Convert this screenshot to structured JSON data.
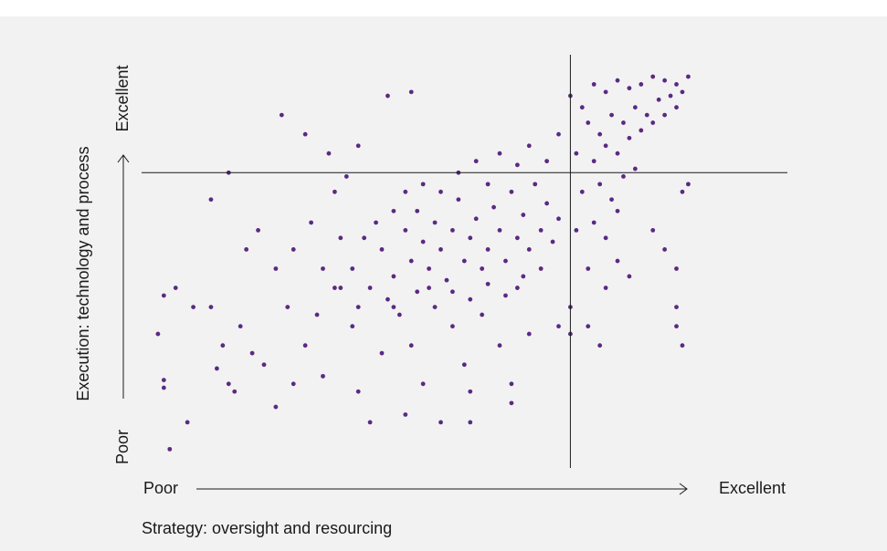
{
  "chart_data": {
    "type": "scatter",
    "xlabel": "Strategy: oversight and resourcing",
    "ylabel": "Execution: technology and process",
    "x_low": "Poor",
    "x_high": "Excellent",
    "y_low": "Poor",
    "y_high": "Excellent",
    "color": "#5a2a82",
    "xlim": [
      0,
      100
    ],
    "ylim": [
      0,
      100
    ],
    "xref": 72,
    "yref": 75,
    "x": [
      4,
      7,
      3,
      2,
      3,
      3,
      5,
      8,
      11,
      11,
      15,
      12,
      13,
      14,
      16,
      18,
      20,
      22,
      25,
      24,
      27,
      29,
      30,
      32,
      14,
      17,
      19,
      22,
      25,
      28,
      30,
      32,
      33,
      35,
      36,
      38,
      40,
      42,
      44,
      45,
      47,
      48,
      50,
      52,
      54,
      55,
      57,
      60,
      62,
      63,
      65,
      67,
      70,
      36,
      41,
      45,
      23,
      27,
      31,
      34,
      40,
      42,
      44,
      45,
      46,
      47,
      48,
      49,
      50,
      51,
      52,
      53,
      54,
      55,
      56,
      57,
      58,
      59,
      60,
      61,
      62,
      63,
      64,
      65,
      66,
      67,
      68,
      69,
      70,
      38,
      41,
      43,
      46,
      49,
      52,
      55,
      58,
      61,
      64,
      50,
      53,
      56,
      58,
      60,
      47,
      44,
      42,
      39,
      37,
      35,
      33,
      36,
      63,
      65,
      68,
      70,
      72,
      74,
      76,
      78,
      80,
      82,
      84,
      86,
      88,
      90,
      92,
      75,
      77,
      79,
      81,
      83,
      85,
      87,
      89,
      91,
      73,
      76,
      78,
      80,
      82,
      84,
      86,
      88,
      90,
      74,
      77,
      79,
      81,
      83,
      73,
      76,
      78,
      80,
      75,
      78,
      80,
      82,
      72,
      75,
      77,
      86,
      88,
      90,
      90,
      91,
      90,
      92,
      91,
      72,
      62,
      55
    ],
    "values": [
      3,
      10,
      43,
      33,
      19,
      21,
      45,
      40,
      40,
      68,
      18,
      24,
      30,
      20,
      35,
      28,
      25,
      14,
      20,
      40,
      30,
      38,
      22,
      45,
      75,
      55,
      60,
      50,
      55,
      62,
      50,
      70,
      58,
      35,
      18,
      10,
      28,
      40,
      12,
      30,
      20,
      45,
      10,
      35,
      25,
      18,
      38,
      30,
      15,
      45,
      33,
      50,
      35,
      82,
      95,
      96,
      90,
      85,
      80,
      74,
      55,
      48,
      60,
      52,
      65,
      57,
      50,
      62,
      55,
      47,
      60,
      68,
      52,
      58,
      63,
      50,
      55,
      66,
      60,
      52,
      70,
      58,
      64,
      55,
      72,
      60,
      67,
      57,
      63,
      45,
      42,
      38,
      44,
      40,
      44,
      42,
      46,
      43,
      48,
      70,
      75,
      78,
      72,
      80,
      72,
      70,
      65,
      62,
      58,
      50,
      45,
      40,
      77,
      82,
      78,
      85,
      95,
      92,
      98,
      96,
      99,
      97,
      98,
      100,
      99,
      98,
      100,
      88,
      85,
      90,
      88,
      92,
      90,
      94,
      95,
      96,
      80,
      78,
      82,
      80,
      84,
      86,
      88,
      90,
      92,
      70,
      72,
      68,
      74,
      76,
      60,
      62,
      58,
      65,
      50,
      45,
      52,
      48,
      40,
      35,
      30,
      60,
      55,
      40,
      35,
      30,
      50,
      72,
      70,
      33,
      20,
      10
    ]
  }
}
